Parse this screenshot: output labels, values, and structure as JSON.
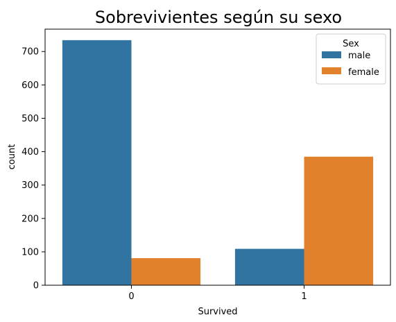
{
  "chart_data": {
    "type": "bar",
    "title": "Sobrevivientes según su sexo",
    "xlabel": "Survived",
    "ylabel": "count",
    "categories": [
      "0",
      "1"
    ],
    "series": [
      {
        "name": "male",
        "color": "#3274a1",
        "values": [
          734,
          109
        ]
      },
      {
        "name": "female",
        "color": "#e1812c",
        "values": [
          81,
          385
        ]
      }
    ],
    "ylim": [
      0,
      767
    ],
    "yticks": [
      0,
      100,
      200,
      300,
      400,
      500,
      600,
      700
    ],
    "legend": {
      "title": "Sex",
      "position": "top-right"
    },
    "grid": false
  }
}
